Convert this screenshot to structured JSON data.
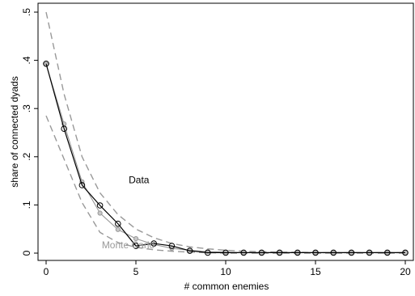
{
  "chart_data": {
    "type": "line",
    "xlabel": "# common enemies",
    "ylabel": "share of connected dyads",
    "xlim": [
      0,
      20
    ],
    "ylim": [
      0,
      0.5
    ],
    "x_ticks": [
      0,
      5,
      10,
      15,
      20
    ],
    "y_ticks": [
      0,
      0.1,
      0.2,
      0.3,
      0.4,
      0.5
    ],
    "y_tick_labels": [
      "0",
      ".1",
      ".2",
      ".3",
      ".4",
      ".5"
    ],
    "grid": false,
    "annotations": [
      {
        "text": "Data",
        "color": "#000000",
        "x": 4.6,
        "y": 0.145
      },
      {
        "text": "Monte Carlo",
        "color": "#999999",
        "x": 3.1,
        "y": 0.01
      }
    ],
    "x": [
      0,
      1,
      2,
      3,
      4,
      5,
      6,
      7,
      8,
      9,
      10,
      11,
      12,
      13,
      14,
      15,
      16,
      17,
      18,
      19,
      20
    ],
    "series": [
      {
        "color": "#000000",
        "style": "solid-circle-markers",
        "values": [
          0.393,
          0.258,
          0.141,
          0.099,
          0.061,
          0.015,
          0.02,
          0.015,
          0.005,
          0.001,
          0.001,
          0.001,
          0.001,
          0.001,
          0.001,
          0.001,
          0.001,
          0.001,
          0.001,
          0.001,
          0.001
        ]
      },
      {
        "color": "#999999",
        "style": "solid-circle-markers",
        "values": [
          0.392,
          0.268,
          0.148,
          0.083,
          0.049,
          0.03,
          0.018,
          0.01,
          0.006,
          0.003,
          0.002,
          0.001,
          0.001,
          0.001,
          0.001,
          0.001,
          0.001,
          0.001,
          0.001,
          0.001,
          0.001
        ]
      },
      {
        "color": "#999999",
        "style": "dashed",
        "values": [
          0.5,
          0.33,
          0.2,
          0.125,
          0.08,
          0.05,
          0.032,
          0.02,
          0.013,
          0.009,
          0.006,
          0.004,
          0.003,
          0.002,
          0.002,
          0.001,
          0.001,
          0.001,
          0.001,
          0.001,
          0.001
        ]
      },
      {
        "color": "#999999",
        "style": "dashed",
        "values": [
          0.285,
          0.195,
          0.105,
          0.043,
          0.022,
          0.012,
          0.007,
          0.004,
          0.002,
          0.001,
          0.0,
          0.0,
          0.0,
          0.0,
          0.0,
          0.0,
          0.0,
          0.0,
          0.0,
          0.0,
          0.0
        ]
      }
    ]
  }
}
